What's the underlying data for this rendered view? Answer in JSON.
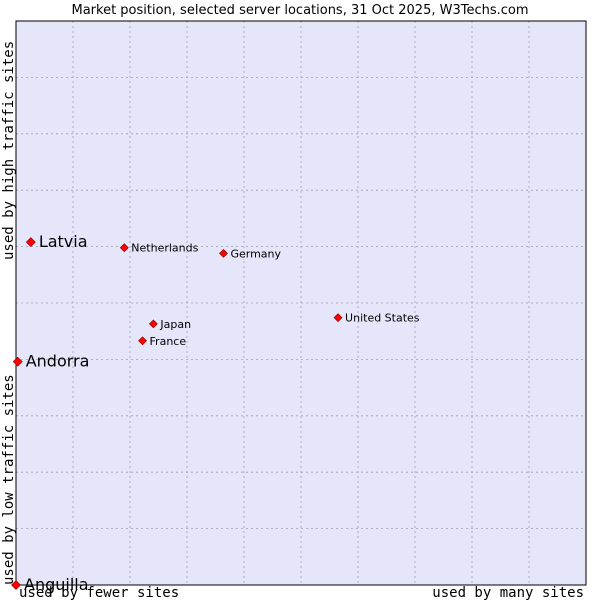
{
  "chart_data": {
    "type": "scatter",
    "title": "Market position, selected server locations, 31 Oct 2025, W3Techs.com",
    "x_label_low": "used by fewer sites",
    "x_label_high": "used by many sites",
    "y_label_low": "used by low traffic sites",
    "y_label_high": "used by high traffic sites",
    "xlim": [
      0,
      100
    ],
    "ylim": [
      0,
      100
    ],
    "grid": true,
    "grid_divisions": 10,
    "colors": {
      "plot_background": "#e6e6fa",
      "grid": "#a0a0b4",
      "marker": "#ff0000",
      "marker_outline": "#8b0000",
      "border": "#000000"
    },
    "points": [
      {
        "name": "Latvia",
        "x": 2.6,
        "y": 60.8,
        "highlight": true
      },
      {
        "name": "Andorra",
        "x": 0.3,
        "y": 39.6,
        "highlight": true
      },
      {
        "name": "Anguilla",
        "x": 0.0,
        "y": 0.0,
        "highlight": true
      },
      {
        "name": "Netherlands",
        "x": 19.0,
        "y": 59.8,
        "highlight": false
      },
      {
        "name": "Germany",
        "x": 36.4,
        "y": 58.8,
        "highlight": false
      },
      {
        "name": "United States",
        "x": 56.5,
        "y": 47.4,
        "highlight": false
      },
      {
        "name": "Japan",
        "x": 24.1,
        "y": 46.3,
        "highlight": false
      },
      {
        "name": "France",
        "x": 22.2,
        "y": 43.3,
        "highlight": false
      }
    ]
  }
}
